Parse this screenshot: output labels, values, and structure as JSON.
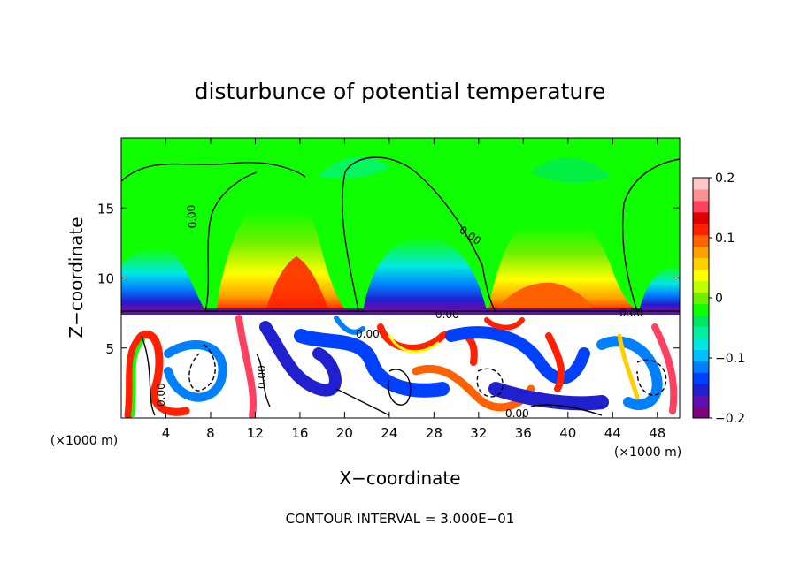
{
  "chart_data": {
    "type": "heatmap",
    "title": "disturbunce of potential temperature",
    "xlabel": "X−coordinate",
    "ylabel": "Z−coordinate",
    "x_unit_left": "(×1000 m)",
    "x_unit_right": "(×1000 m)",
    "footer": "CONTOUR INTERVAL = 3.000E−01",
    "xlim": [
      0,
      50
    ],
    "ylim": [
      0,
      20
    ],
    "x_ticks": [
      "4",
      "8",
      "12",
      "16",
      "20",
      "24",
      "28",
      "32",
      "36",
      "40",
      "44",
      "48"
    ],
    "x_tick_values": [
      4,
      8,
      12,
      16,
      20,
      24,
      28,
      32,
      36,
      40,
      44,
      48
    ],
    "y_ticks": [
      "5",
      "10",
      "15"
    ],
    "y_tick_values": [
      5,
      10,
      15
    ],
    "colorbar": {
      "min": -0.2,
      "max": 0.2,
      "labels": [
        "0.2",
        "0.1",
        "0",
        "−0.1",
        "−0.2"
      ],
      "label_values": [
        0.2,
        0.1,
        0,
        -0.1,
        -0.2
      ],
      "colors": [
        "#800080",
        "#6010b0",
        "#2020d0",
        "#0040ff",
        "#0080ff",
        "#00c0ff",
        "#00e8e0",
        "#00f0a0",
        "#00e860",
        "#10ff00",
        "#70f000",
        "#c0ff00",
        "#ffff00",
        "#ffd000",
        "#ffa000",
        "#ff6000",
        "#ff2000",
        "#e00000",
        "#ff4060",
        "#ff9090",
        "#ffc8c8"
      ]
    },
    "contour_labels": [
      "0.00",
      "0.00",
      "0.00",
      "0.00",
      "0.00",
      "0.00",
      "0.00",
      "0.00"
    ]
  }
}
